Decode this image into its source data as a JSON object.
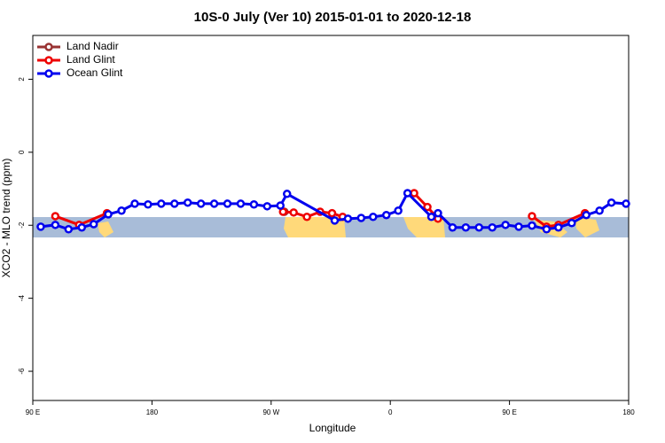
{
  "chart_data": {
    "type": "line",
    "title": "10S-0 July (Ver 10)   2015-01-01 to 2020-12-18",
    "x_label": "Longitude",
    "y_label": "XCO2 - MLO trend (ppm)",
    "xlim": [
      90,
      540
    ],
    "ylim": [
      -6.8,
      3.2
    ],
    "xticks": [
      {
        "value": 90,
        "label": "90 E"
      },
      180,
      {
        "value": 270,
        "label": "90 W"
      },
      {
        "value": 360,
        "label": "0"
      },
      {
        "value": 450,
        "label": "90 E"
      },
      {
        "value": 540,
        "label": "180"
      }
    ],
    "yticks": [
      2,
      0,
      -2,
      -4,
      -6
    ],
    "legend_position": "top-left",
    "series": [
      {
        "name": "Land Nadir",
        "color": "#993333",
        "x": [
          280
        ],
        "values": [
          -1.63
        ]
      },
      {
        "name": "Land Glint",
        "color": "#ee0000",
        "x": [
          107,
          125,
          146,
          null,
          279,
          287,
          297,
          307,
          316,
          324,
          null,
          378,
          388,
          396,
          null,
          467,
          478,
          487,
          507
        ],
        "values": [
          -1.75,
          -1.99,
          -1.67,
          null,
          -1.63,
          -1.65,
          -1.77,
          -1.63,
          -1.67,
          -1.77,
          null,
          -1.12,
          -1.5,
          -1.82,
          null,
          -1.75,
          -2.04,
          -1.99,
          -1.67
        ]
      },
      {
        "name": "Ocean Glint",
        "color": "#0000ee",
        "x": [
          96,
          107,
          117,
          127,
          136,
          147,
          157,
          167,
          177,
          187,
          197,
          207,
          217,
          227,
          237,
          247,
          257,
          267,
          277,
          282,
          318,
          328,
          338,
          347,
          357,
          366,
          373,
          391,
          396,
          407,
          417,
          427,
          437,
          447,
          457,
          467,
          478,
          487,
          497,
          508,
          518,
          527,
          538
        ],
        "values": [
          -2.04,
          -1.99,
          -2.11,
          -2.06,
          -1.97,
          -1.7,
          -1.6,
          -1.41,
          -1.43,
          -1.41,
          -1.41,
          -1.38,
          -1.41,
          -1.41,
          -1.41,
          -1.41,
          -1.43,
          -1.48,
          -1.46,
          -1.14,
          -1.87,
          -1.82,
          -1.8,
          -1.77,
          -1.72,
          -1.6,
          -1.12,
          -1.77,
          -1.67,
          -2.06,
          -2.06,
          -2.06,
          -2.06,
          -1.99,
          -2.04,
          -2.01,
          -2.11,
          -2.06,
          -1.94,
          -1.72,
          -1.6,
          -1.38,
          -1.41
        ]
      }
    ]
  }
}
